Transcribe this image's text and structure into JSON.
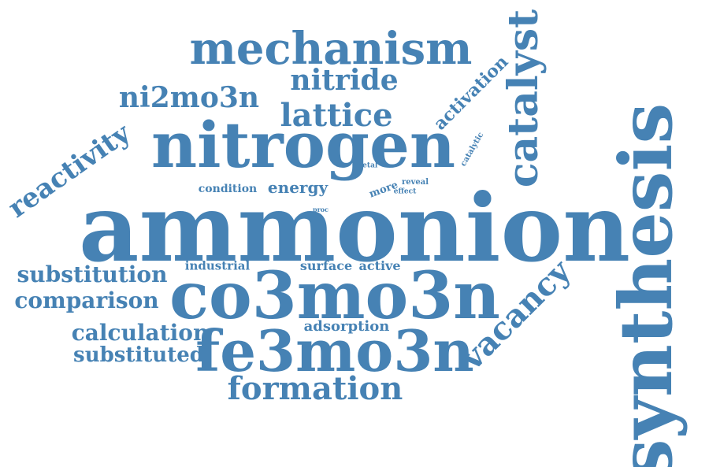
{
  "word_cloud": {
    "color": "#4682b4",
    "background": "#ffffff",
    "words": [
      {
        "text": "ammonion",
        "weight": 1.0
      },
      {
        "text": "synthesis",
        "weight": 0.78,
        "orientation": "vertical"
      },
      {
        "text": "co3mo3n",
        "weight": 0.7
      },
      {
        "text": "nitrogen",
        "weight": 0.68
      },
      {
        "text": "fe3mo3n",
        "weight": 0.61
      },
      {
        "text": "mechanism",
        "weight": 0.47
      },
      {
        "text": "catalyst",
        "weight": 0.44,
        "orientation": "vertical"
      },
      {
        "text": "vacancy",
        "weight": 0.34,
        "orientation": "diagonal"
      },
      {
        "text": "formation",
        "weight": 0.34
      },
      {
        "text": "lattice",
        "weight": 0.34
      },
      {
        "text": "ni2mo3n",
        "weight": 0.31
      },
      {
        "text": "nitride",
        "weight": 0.31
      },
      {
        "text": "reactivity",
        "weight": 0.29,
        "orientation": "diagonal"
      },
      {
        "text": "substitution",
        "weight": 0.24
      },
      {
        "text": "comparison",
        "weight": 0.24
      },
      {
        "text": "calculation",
        "weight": 0.24
      },
      {
        "text": "substituted",
        "weight": 0.22
      },
      {
        "text": "activation",
        "weight": 0.19,
        "orientation": "diagonal"
      },
      {
        "text": "energy",
        "weight": 0.17
      },
      {
        "text": "adsorption",
        "weight": 0.15
      },
      {
        "text": "surface",
        "weight": 0.14
      },
      {
        "text": "active",
        "weight": 0.14
      },
      {
        "text": "industrial",
        "weight": 0.13
      },
      {
        "text": "condition",
        "weight": 0.12
      },
      {
        "text": "more",
        "weight": 0.11,
        "orientation": "diagonal"
      },
      {
        "text": "catalytic",
        "weight": 0.08,
        "orientation": "diagonal"
      },
      {
        "text": "reveal",
        "weight": 0.08
      },
      {
        "text": "metal",
        "weight": 0.08
      },
      {
        "text": "effect",
        "weight": 0.08
      },
      {
        "text": "proc",
        "weight": 0.07
      }
    ]
  }
}
